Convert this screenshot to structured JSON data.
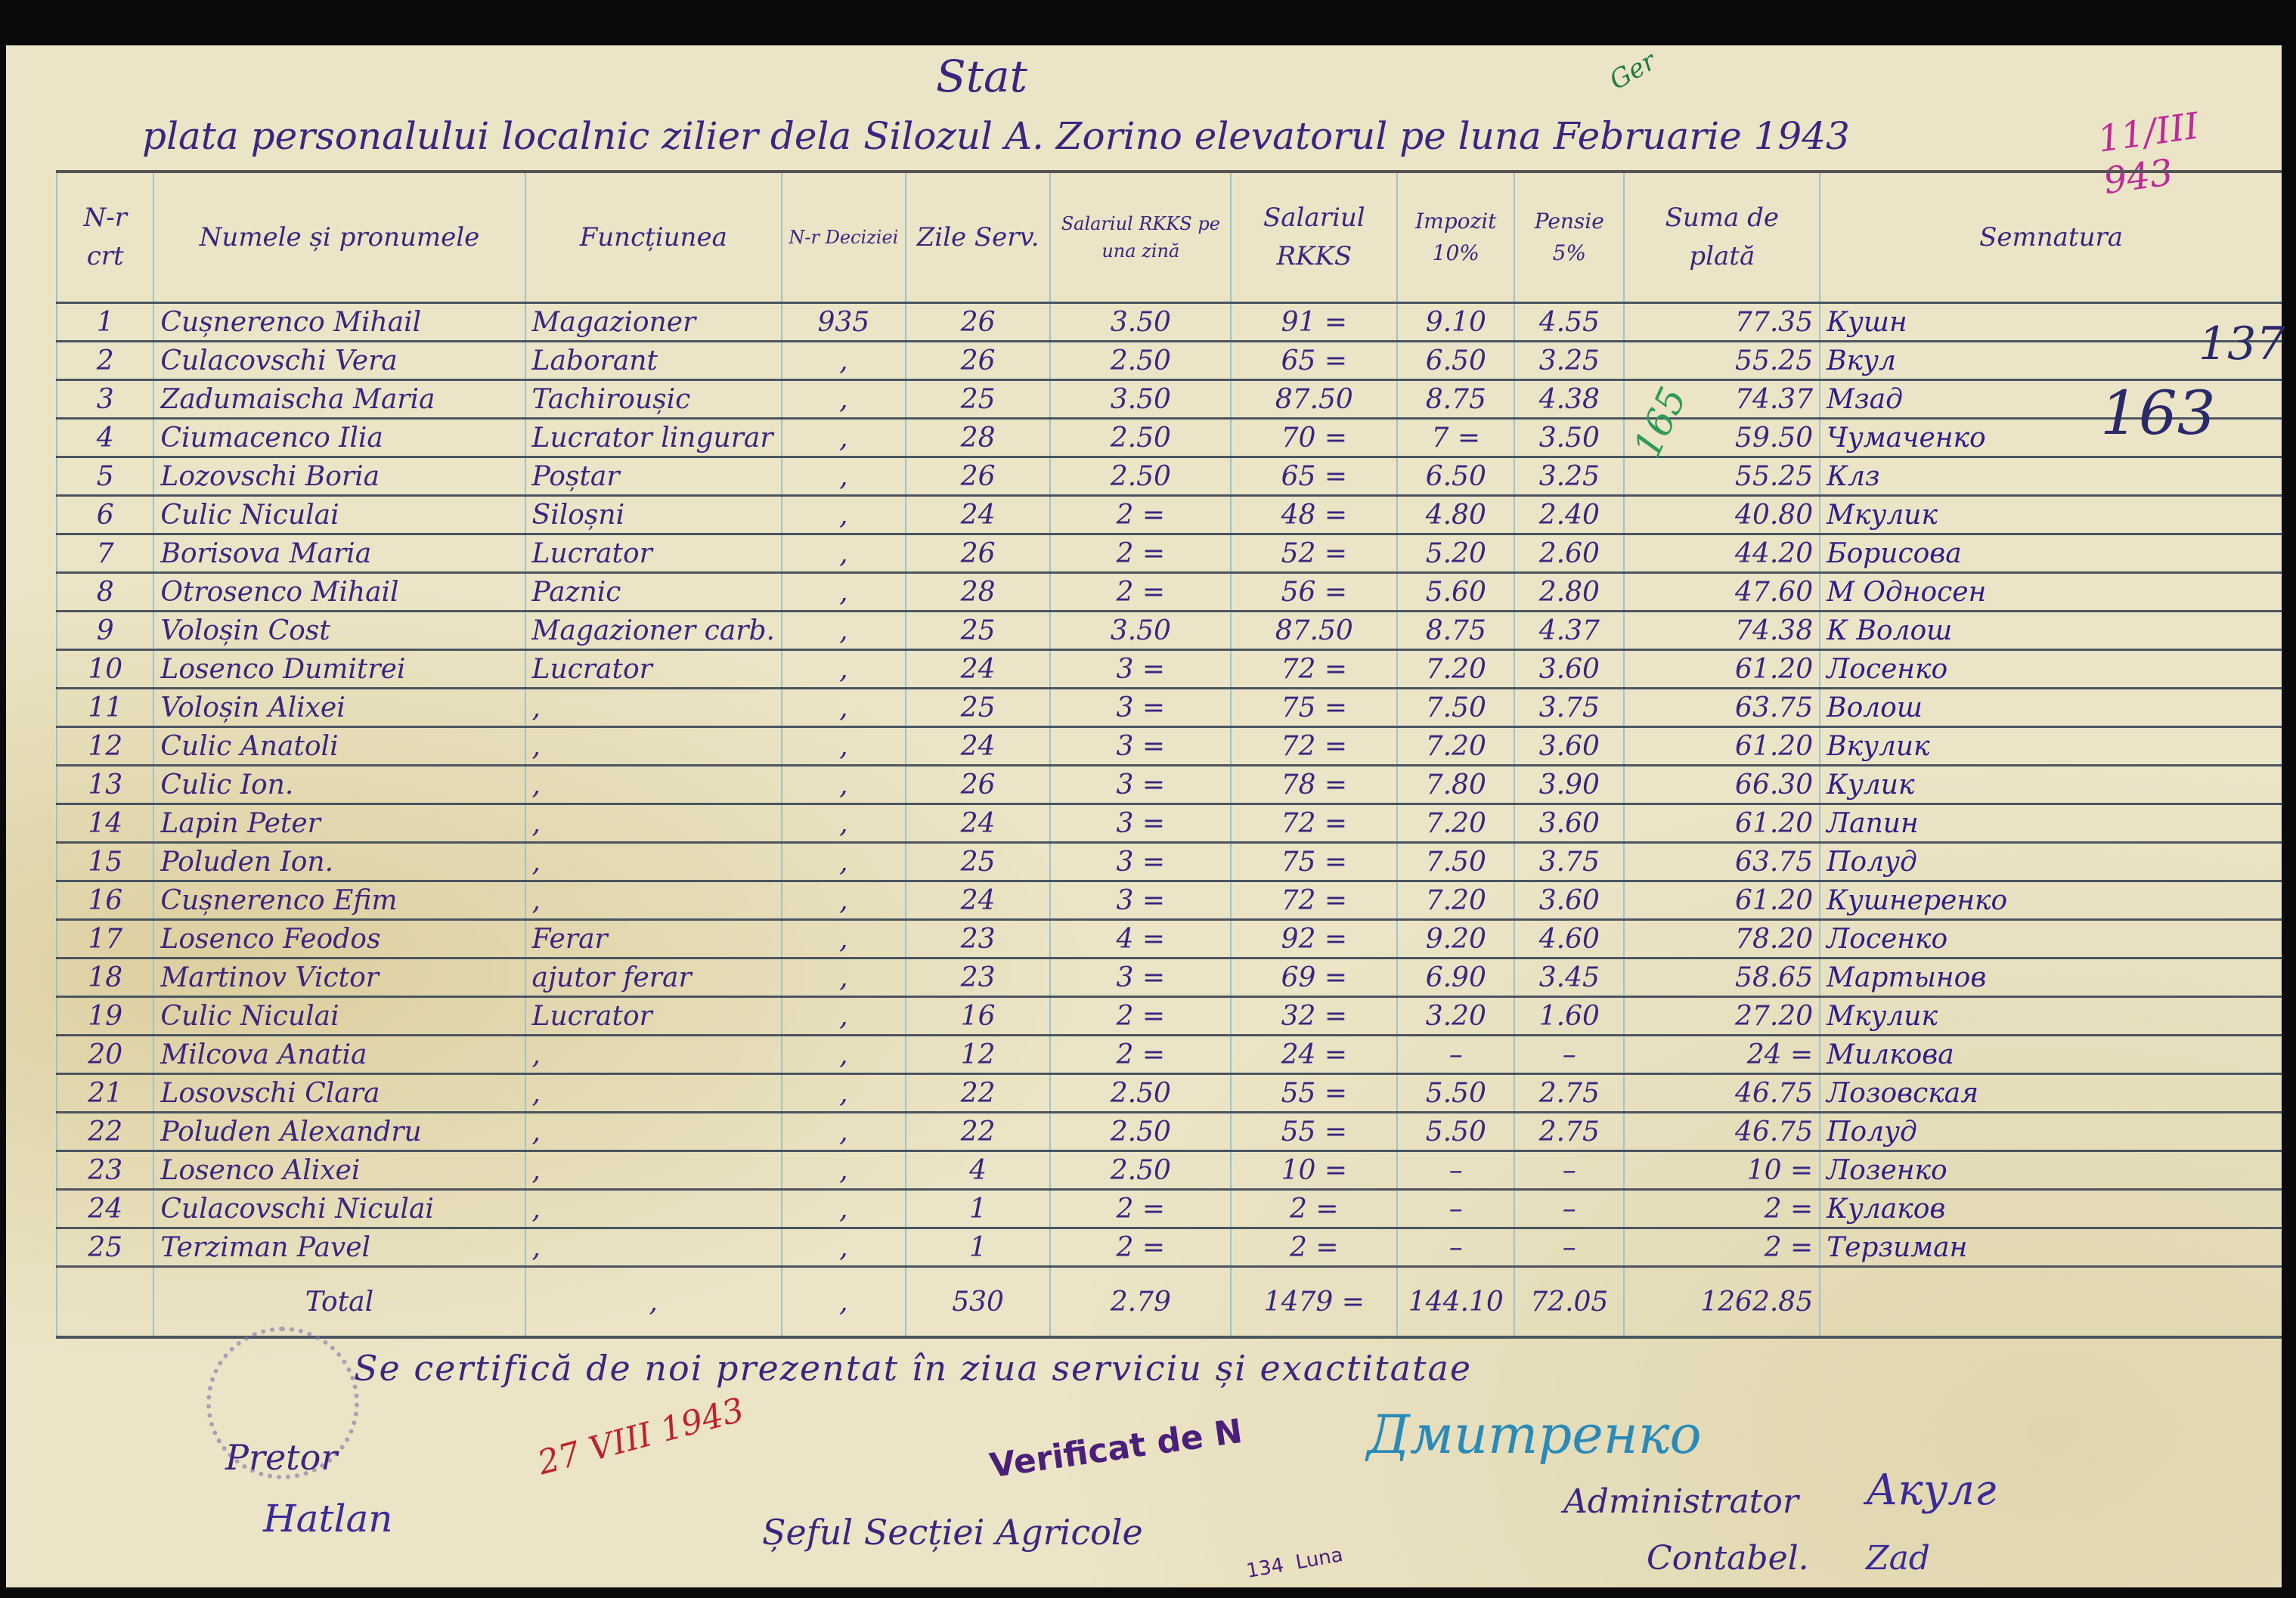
{
  "document": {
    "title": "Stat",
    "subtitle": "plata personalului localnic zilier dela Silozul A. Zorino elevatorul pe luna Februarie 1943",
    "date_note": "11/III 943",
    "green_note": "Ger"
  },
  "table": {
    "headers": [
      "N-r crt",
      "Numele și pronumele",
      "Funcțiunea",
      "N-r Deciziei",
      "Zile Serv.",
      "Salariul RKKS pe una zină",
      "Salariul RKKS",
      "Impozit 10%",
      "Pensie 5%",
      "Suma de plată",
      "Semnatura"
    ],
    "rows": [
      {
        "nr": "1",
        "name": "Cușnerenco Mihail",
        "function": "Magazioner",
        "decision": "935",
        "days": "26",
        "daily": "3.50",
        "salary": "91 =",
        "tax": "9.10",
        "pension": "4.55",
        "pay": "77.35",
        "signature": "Кушн"
      },
      {
        "nr": "2",
        "name": "Culacovschi Vera",
        "function": "Laborant",
        "decision": ",",
        "days": "26",
        "daily": "2.50",
        "salary": "65 =",
        "tax": "6.50",
        "pension": "3.25",
        "pay": "55.25",
        "signature": "Вкул"
      },
      {
        "nr": "3",
        "name": "Zadumaischa Maria",
        "function": "Tachiroușic",
        "decision": ",",
        "days": "25",
        "daily": "3.50",
        "salary": "87.50",
        "tax": "8.75",
        "pension": "4.38",
        "pay": "74.37",
        "signature": "Мзад"
      },
      {
        "nr": "4",
        "name": "Ciumacenco Ilia",
        "function": "Lucrator lingurar",
        "decision": ",",
        "days": "28",
        "daily": "2.50",
        "salary": "70 =",
        "tax": "7 =",
        "pension": "3.50",
        "pay": "59.50",
        "signature": "Чумаченко"
      },
      {
        "nr": "5",
        "name": "Lozovschi Boria",
        "function": "Poștar",
        "decision": ",",
        "days": "26",
        "daily": "2.50",
        "salary": "65 =",
        "tax": "6.50",
        "pension": "3.25",
        "pay": "55.25",
        "signature": "Клз"
      },
      {
        "nr": "6",
        "name": "Culic Niculai",
        "function": "Siloșni",
        "decision": ",",
        "days": "24",
        "daily": "2 =",
        "salary": "48 =",
        "tax": "4.80",
        "pension": "2.40",
        "pay": "40.80",
        "signature": "Мкулик"
      },
      {
        "nr": "7",
        "name": "Borisova Maria",
        "function": "Lucrator",
        "decision": ",",
        "days": "26",
        "daily": "2 =",
        "salary": "52 =",
        "tax": "5.20",
        "pension": "2.60",
        "pay": "44.20",
        "signature": "Борисова"
      },
      {
        "nr": "8",
        "name": "Otrosenco Mihail",
        "function": "Paznic",
        "decision": ",",
        "days": "28",
        "daily": "2 =",
        "salary": "56 =",
        "tax": "5.60",
        "pension": "2.80",
        "pay": "47.60",
        "signature": "М Односен"
      },
      {
        "nr": "9",
        "name": "Voloșin Cost",
        "function": "Magazioner carb.",
        "decision": ",",
        "days": "25",
        "daily": "3.50",
        "salary": "87.50",
        "tax": "8.75",
        "pension": "4.37",
        "pay": "74.38",
        "signature": "К Волош"
      },
      {
        "nr": "10",
        "name": "Losenco Dumitrei",
        "function": "Lucrator",
        "decision": ",",
        "days": "24",
        "daily": "3 =",
        "salary": "72 =",
        "tax": "7.20",
        "pension": "3.60",
        "pay": "61.20",
        "signature": "Лосенко"
      },
      {
        "nr": "11",
        "name": "Voloșin Alixei",
        "function": ",",
        "decision": ",",
        "days": "25",
        "daily": "3 =",
        "salary": "75 =",
        "tax": "7.50",
        "pension": "3.75",
        "pay": "63.75",
        "signature": "Волош"
      },
      {
        "nr": "12",
        "name": "Culic Anatoli",
        "function": ",",
        "decision": ",",
        "days": "24",
        "daily": "3 =",
        "salary": "72 =",
        "tax": "7.20",
        "pension": "3.60",
        "pay": "61.20",
        "signature": "Вкулик"
      },
      {
        "nr": "13",
        "name": "Culic Ion.",
        "function": ",",
        "decision": ",",
        "days": "26",
        "daily": "3 =",
        "salary": "78 =",
        "tax": "7.80",
        "pension": "3.90",
        "pay": "66.30",
        "signature": "Кулик"
      },
      {
        "nr": "14",
        "name": "Lapin Peter",
        "function": ",",
        "decision": ",",
        "days": "24",
        "daily": "3 =",
        "salary": "72 =",
        "tax": "7.20",
        "pension": "3.60",
        "pay": "61.20",
        "signature": "Лапин"
      },
      {
        "nr": "15",
        "name": "Poluden Ion.",
        "function": ",",
        "decision": ",",
        "days": "25",
        "daily": "3 =",
        "salary": "75 =",
        "tax": "7.50",
        "pension": "3.75",
        "pay": "63.75",
        "signature": "Полуд"
      },
      {
        "nr": "16",
        "name": "Cușnerenco Efim",
        "function": ",",
        "decision": ",",
        "days": "24",
        "daily": "3 =",
        "salary": "72 =",
        "tax": "7.20",
        "pension": "3.60",
        "pay": "61.20",
        "signature": "Кушнеренко"
      },
      {
        "nr": "17",
        "name": "Losenco Feodos",
        "function": "Ferar",
        "decision": ",",
        "days": "23",
        "daily": "4 =",
        "salary": "92 =",
        "tax": "9.20",
        "pension": "4.60",
        "pay": "78.20",
        "signature": "Лосенко"
      },
      {
        "nr": "18",
        "name": "Martinov Victor",
        "function": "ajutor ferar",
        "decision": ",",
        "days": "23",
        "daily": "3 =",
        "salary": "69 =",
        "tax": "6.90",
        "pension": "3.45",
        "pay": "58.65",
        "signature": "Мартынов"
      },
      {
        "nr": "19",
        "name": "Culic Niculai",
        "function": "Lucrator",
        "decision": ",",
        "days": "16",
        "daily": "2 =",
        "salary": "32 =",
        "tax": "3.20",
        "pension": "1.60",
        "pay": "27.20",
        "signature": "Мкулик"
      },
      {
        "nr": "20",
        "name": "Milcova Anatia",
        "function": ",",
        "decision": ",",
        "days": "12",
        "daily": "2 =",
        "salary": "24 =",
        "tax": "–",
        "pension": "–",
        "pay": "24 =",
        "signature": "Милкова"
      },
      {
        "nr": "21",
        "name": "Losovschi Clara",
        "function": ",",
        "decision": ",",
        "days": "22",
        "daily": "2.50",
        "salary": "55 =",
        "tax": "5.50",
        "pension": "2.75",
        "pay": "46.75",
        "signature": "Лозовская"
      },
      {
        "nr": "22",
        "name": "Poluden Alexandru",
        "function": ",",
        "decision": ",",
        "days": "22",
        "daily": "2.50",
        "salary": "55 =",
        "tax": "5.50",
        "pension": "2.75",
        "pay": "46.75",
        "signature": "Полуд"
      },
      {
        "nr": "23",
        "name": "Losenco Alixei",
        "function": ",",
        "decision": ",",
        "days": "4",
        "daily": "2.50",
        "salary": "10 =",
        "tax": "–",
        "pension": "–",
        "pay": "10 =",
        "signature": "Лозенко"
      },
      {
        "nr": "24",
        "name": "Culacovschi Niculai",
        "function": ",",
        "decision": ",",
        "days": "1",
        "daily": "2 =",
        "salary": "2 =",
        "tax": "–",
        "pension": "–",
        "pay": "2 =",
        "signature": "Кулаков"
      },
      {
        "nr": "25",
        "name": "Terziman Pavel",
        "function": ",",
        "decision": ",",
        "days": "1",
        "daily": "2 =",
        "salary": "2 =",
        "tax": "–",
        "pension": "–",
        "pay": "2 =",
        "signature": "Терзиман"
      }
    ],
    "total": {
      "label": "Total",
      "function": ",",
      "decision": ",",
      "days": "530",
      "daily": "2.79",
      "salary": "1479 =",
      "tax": "144.10",
      "pension": "72.05",
      "pay": "1262.85"
    }
  },
  "footer": {
    "certify": "Se certifică de noi prezentat în ziua serviciu și exactitatae",
    "pretor": "Pretor",
    "sef": "Șeful Secției Agricole",
    "administrator": "Administrator",
    "contabil": "Contabel.",
    "verified_stamp": "Verificat de N",
    "stamp_luna": "134  Luna",
    "red_date": "27 VIII 1943",
    "pretor_signature": "Hatlan",
    "sef_signature": "Дмитренко",
    "admin_signature": "Акулг",
    "contabil_signature": "Zad",
    "margin_count": "163",
    "margin_count2": "137",
    "green_count": "165"
  },
  "colors": {
    "paper": "#ebe4c6",
    "ink": "#3b2580",
    "grid": "#9fc3c8",
    "pink": "#c02a9a",
    "red": "#c0222a"
  }
}
